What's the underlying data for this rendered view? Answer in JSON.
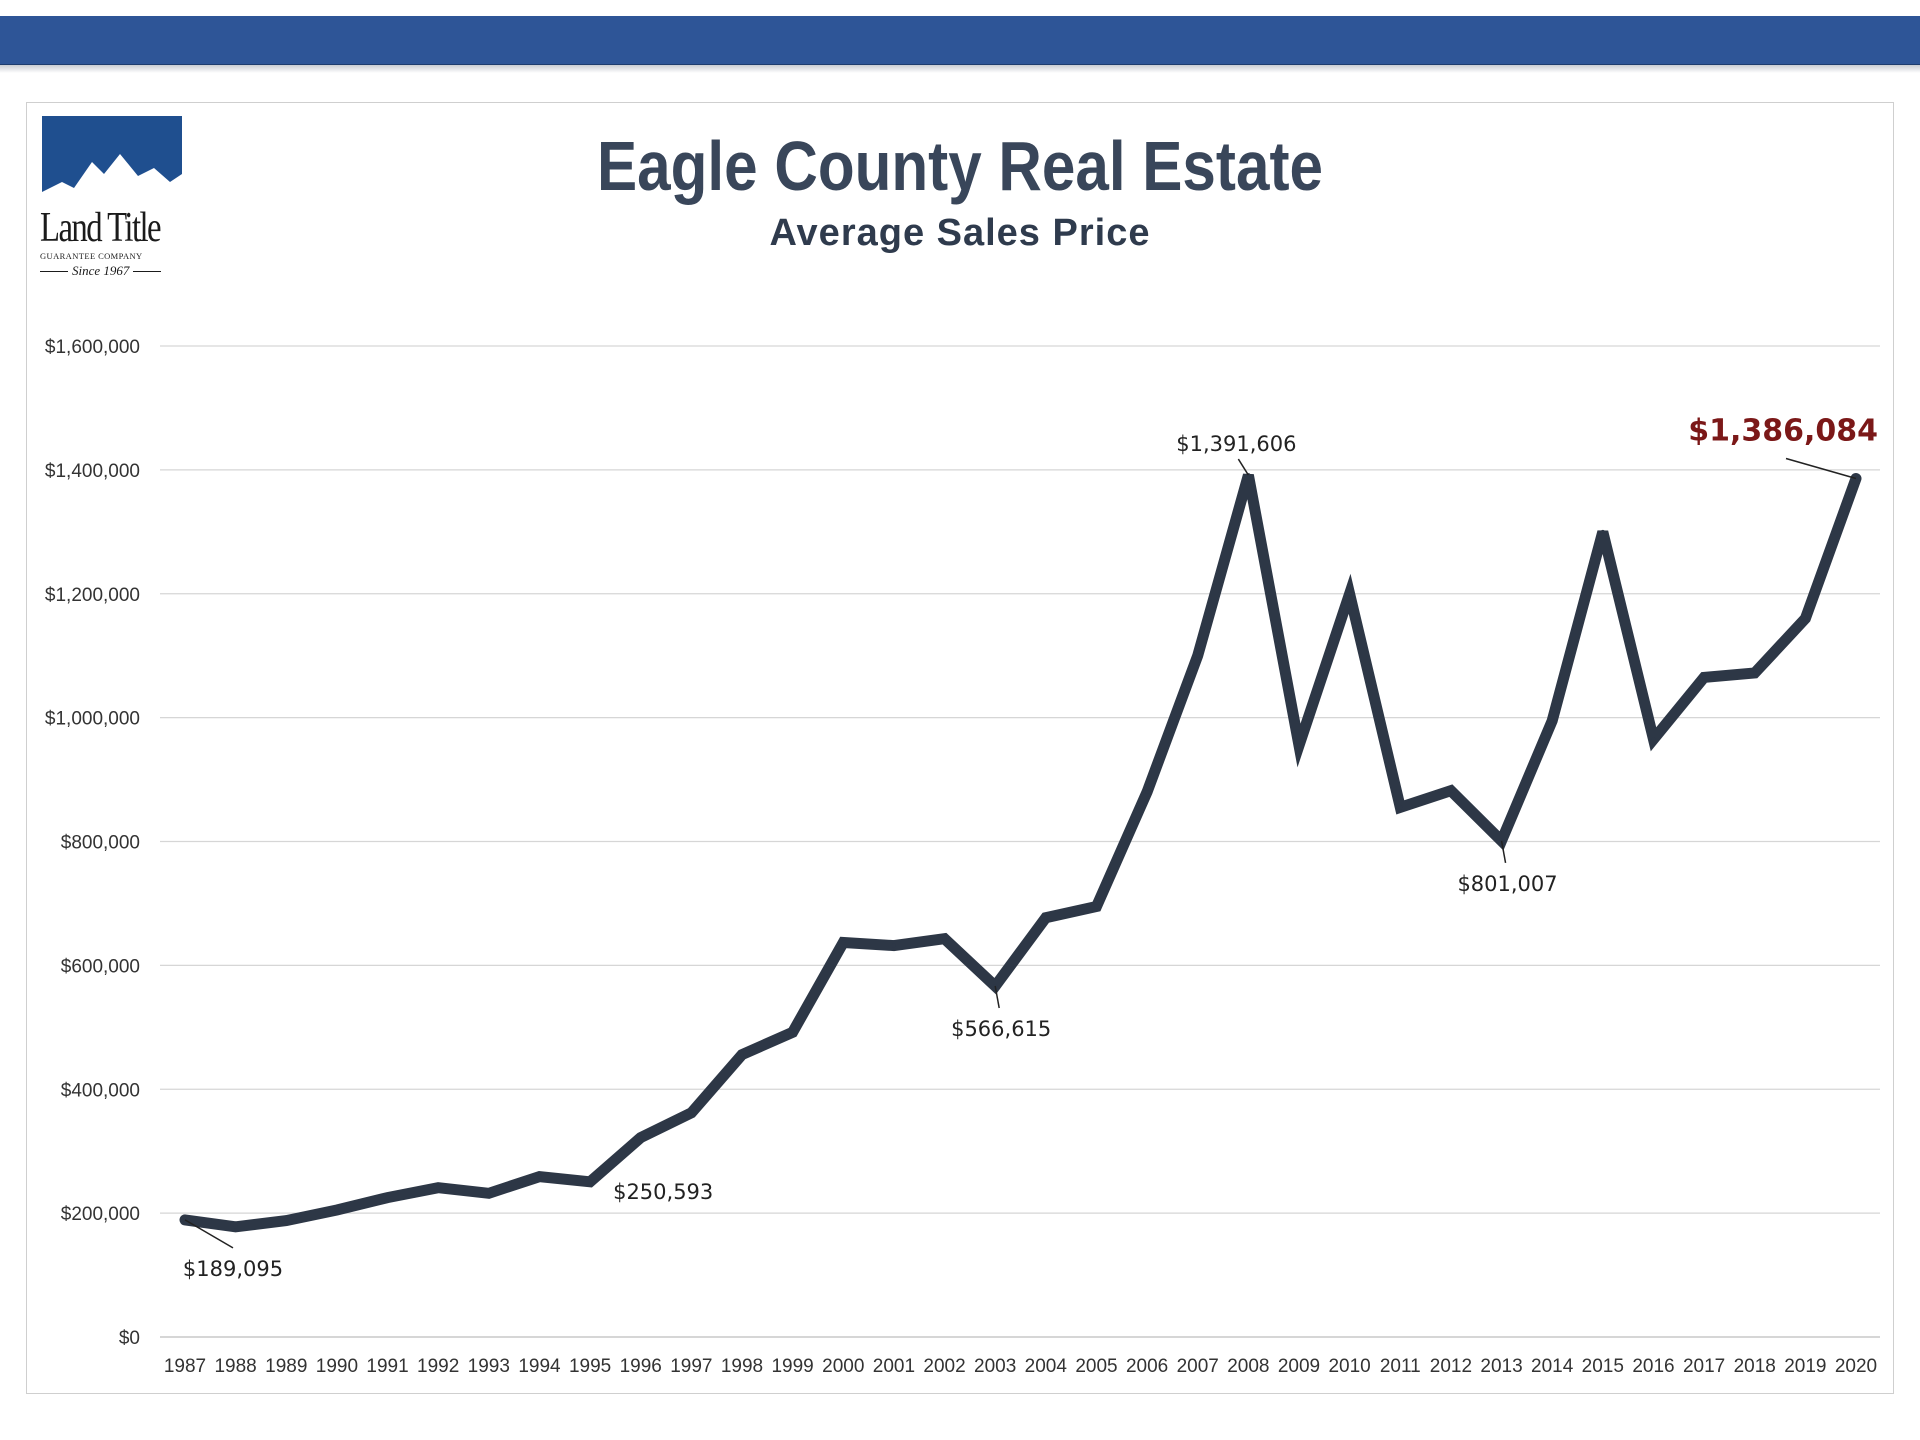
{
  "colors": {
    "header_bar": "#2e5597",
    "line": "#2d3746",
    "highlight_label": "#7b1818",
    "grid": "#d6d6d6"
  },
  "logo": {
    "icon": "mountain-logo-icon",
    "name": "Land Title",
    "tagline": "GUARANTEE COMPANY",
    "since": "Since 1967"
  },
  "chart_data": {
    "type": "line",
    "title": "Eagle County Real Estate",
    "subtitle": "Average Sales Price",
    "xlabel": "",
    "ylabel": "",
    "x": [
      "1987",
      "1988",
      "1989",
      "1990",
      "1991",
      "1992",
      "1993",
      "1994",
      "1995",
      "1996",
      "1997",
      "1998",
      "1999",
      "2000",
      "2001",
      "2002",
      "2003",
      "2004",
      "2005",
      "2006",
      "2007",
      "2008",
      "2009",
      "2010",
      "2011",
      "2012",
      "2013",
      "2014",
      "2015",
      "2016",
      "2017",
      "2018",
      "2019",
      "2020"
    ],
    "series": [
      {
        "values": [
          189095,
          178000,
          188000,
          205000,
          225000,
          241000,
          232000,
          259000,
          250593,
          322000,
          362000,
          456000,
          492000,
          637000,
          632000,
          643000,
          566615,
          677000,
          695000,
          880000,
          1100000,
          1391606,
          955000,
          1200000,
          855000,
          882000,
          801007,
          995000,
          1300000,
          965000,
          1065000,
          1072000,
          1160000,
          1386084
        ]
      }
    ],
    "ylim": [
      0,
      1600000
    ],
    "yticks": [
      {
        "value": 0,
        "label": "$0"
      },
      {
        "value": 200000,
        "label": "$200,000"
      },
      {
        "value": 400000,
        "label": "$400,000"
      },
      {
        "value": 600000,
        "label": "$600,000"
      },
      {
        "value": 800000,
        "label": "$800,000"
      },
      {
        "value": 1000000,
        "label": "$1,000,000"
      },
      {
        "value": 1200000,
        "label": "$1,200,000"
      },
      {
        "value": 1400000,
        "label": "$1,400,000"
      },
      {
        "value": 1600000,
        "label": "$1,600,000"
      }
    ],
    "grid": true,
    "annotations": [
      {
        "year": "1987",
        "text": "$189,095",
        "placement": "below-right",
        "highlight": false
      },
      {
        "year": "1995",
        "text": "$250,593",
        "placement": "right",
        "highlight": false
      },
      {
        "year": "2003",
        "text": "$566,615",
        "placement": "below",
        "highlight": false
      },
      {
        "year": "2008",
        "text": "$1,391,606",
        "placement": "above",
        "highlight": false
      },
      {
        "year": "2013",
        "text": "$801,007",
        "placement": "below",
        "highlight": false
      },
      {
        "year": "2020",
        "text": "$1,386,084",
        "placement": "above-left",
        "highlight": true
      }
    ]
  }
}
